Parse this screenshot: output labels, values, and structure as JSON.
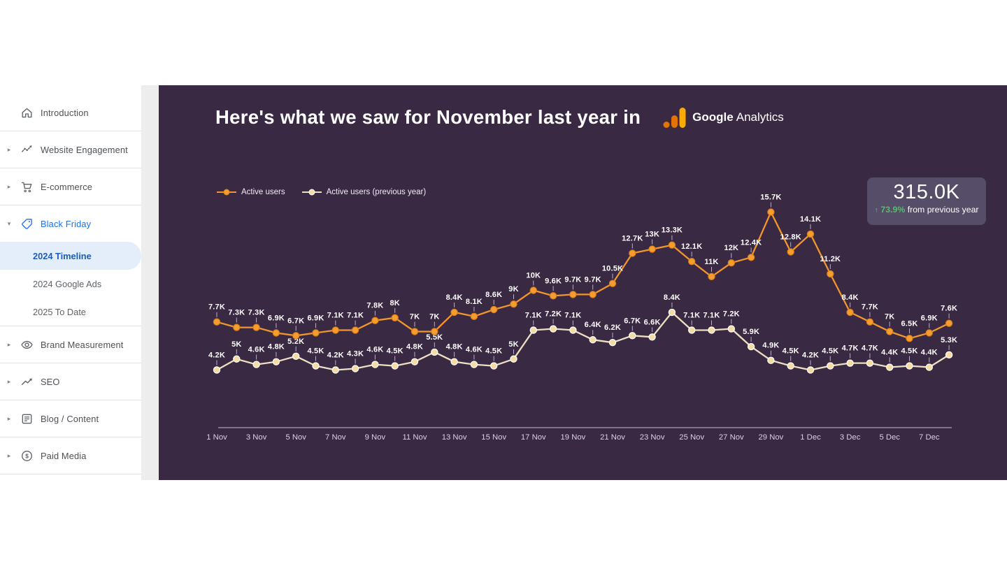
{
  "sidebar": {
    "items": [
      {
        "label": "Introduction",
        "icon": "home-icon",
        "caret": "none"
      },
      {
        "label": "Website Engagement",
        "icon": "engagement-icon",
        "caret": "right"
      },
      {
        "label": "E-commerce",
        "icon": "cart-icon",
        "caret": "right"
      },
      {
        "label": "Black Friday",
        "icon": "tag-icon",
        "caret": "down",
        "accent": true,
        "children": [
          {
            "label": "2024 Timeline",
            "selected": true
          },
          {
            "label": "2024 Google Ads",
            "selected": false
          },
          {
            "label": "2025 To Date",
            "selected": false
          }
        ]
      },
      {
        "label": "Brand Measurement",
        "icon": "eye-icon",
        "caret": "right"
      },
      {
        "label": "SEO",
        "icon": "trend-icon",
        "caret": "right"
      },
      {
        "label": "Blog / Content",
        "icon": "article-icon",
        "caret": "right"
      },
      {
        "label": "Paid Media",
        "icon": "dollar-icon",
        "caret": "right"
      }
    ]
  },
  "slide": {
    "title": "Here's what we saw for November last year in",
    "logo": {
      "google": "Google",
      "analytics": "Analytics"
    },
    "scorecard": {
      "value": "315.0K",
      "delta_pct": "73.9%",
      "delta_suffix": "from previous year"
    }
  },
  "icons": {
    "up_arrow": "↑",
    "caret_right": "▸",
    "caret_down": "▾"
  },
  "colors": {
    "slide_bg": "#3a2943",
    "scorecard_bg": "#564e68",
    "green": "#5bb974",
    "sidebar_blue": "#1a73e8",
    "ga_orange_light": "#F9AB00",
    "ga_orange_dark": "#E37400",
    "axis_line": "#a99bbe",
    "tick_text": "#d9d0e6",
    "label_text": "#ffffff",
    "leader_line": "#b9aecb"
  },
  "chart_data": {
    "type": "line",
    "title": "",
    "xlabel": "",
    "ylabel": "",
    "ylim": [
      0,
      16500
    ],
    "grid": false,
    "legend_position": "top-left",
    "x_tick_labels": [
      "1 Nov",
      "3 Nov",
      "5 Nov",
      "7 Nov",
      "9 Nov",
      "11 Nov",
      "13 Nov",
      "15 Nov",
      "17 Nov",
      "19 Nov",
      "21 Nov",
      "23 Nov",
      "25 Nov",
      "27 Nov",
      "29 Nov",
      "1 Dec",
      "3 Dec",
      "5 Dec",
      "7 Dec"
    ],
    "tick_every": 2,
    "series": [
      {
        "name": "Active users",
        "color": "#F2962B",
        "dot_fill": "#F59E2F",
        "dot_stroke": "#D97E1A",
        "values": [
          7700,
          7300,
          7300,
          6900,
          6700,
          6900,
          7100,
          7100,
          7800,
          8000,
          7000,
          7000,
          8400,
          8100,
          8600,
          9000,
          10000,
          9600,
          9700,
          9700,
          10500,
          12700,
          13000,
          13300,
          12100,
          11000,
          12000,
          12400,
          15700,
          12800,
          14100,
          11200,
          8400,
          7700,
          7000,
          6500,
          6900,
          7600
        ],
        "labels": [
          "7.7K",
          "7.3K",
          "7.3K",
          "6.9K",
          "6.7K",
          "6.9K",
          "7.1K",
          "7.1K",
          "7.8K",
          "8K",
          "7K",
          "7K",
          "8.4K",
          "8.1K",
          "8.6K",
          "9K",
          "10K",
          "9.6K",
          "9.7K",
          "9.7K",
          "10.5K",
          "12.7K",
          "13K",
          "13.3K",
          "12.1K",
          "11K",
          "12K",
          "12.4K",
          "15.7K",
          "12.8K",
          "14.1K",
          "11.2K",
          "8.4K",
          "7.7K",
          "7K",
          "6.5K",
          "6.9K",
          "7.6K"
        ]
      },
      {
        "name": "Active users (previous year)",
        "color": "#EDDFC2",
        "dot_fill": "#F6DCA4",
        "dot_stroke": "#FFFFFF",
        "values": [
          4200,
          5000,
          4600,
          4800,
          5200,
          4500,
          4200,
          4300,
          4600,
          4500,
          4800,
          5500,
          4800,
          4600,
          4500,
          5000,
          7100,
          7200,
          7100,
          6400,
          6200,
          6700,
          6600,
          8400,
          7100,
          7100,
          7200,
          5900,
          4900,
          4500,
          4200,
          4500,
          4700,
          4700,
          4400,
          4500,
          4400,
          5300
        ],
        "labels": [
          "4.2K",
          "5K",
          "4.6K",
          "4.8K",
          "5.2K",
          "4.5K",
          "4.2K",
          "4.3K",
          "4.6K",
          "4.5K",
          "4.8K",
          "5.5K",
          "4.8K",
          "4.6K",
          "4.5K",
          "5K",
          "7.1K",
          "7.2K",
          "7.1K",
          "6.4K",
          "6.2K",
          "6.7K",
          "6.6K",
          "8.4K",
          "7.1K",
          "7.1K",
          "7.2K",
          "5.9K",
          "4.9K",
          "4.5K",
          "4.2K",
          "4.5K",
          "4.7K",
          "4.7K",
          "4.4K",
          "4.5K",
          "4.4K",
          "5.3K"
        ]
      }
    ]
  }
}
